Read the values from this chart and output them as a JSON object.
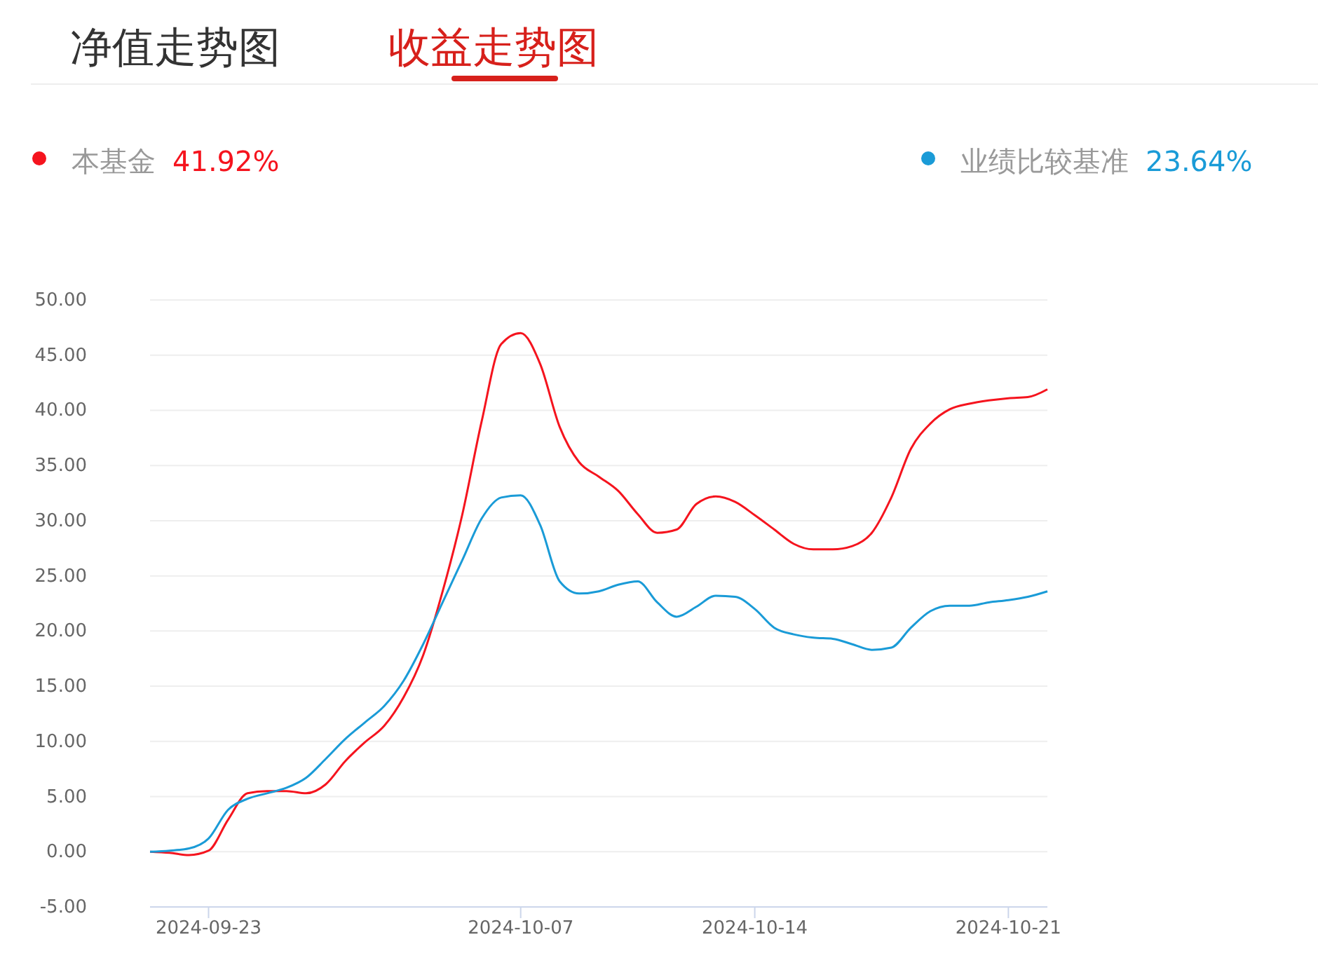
{
  "chart_data": {
    "type": "line",
    "title": "收益走势图",
    "annotations": [
      "净值走势图",
      "41.92%",
      "23.64%"
    ],
    "categories": [
      null,
      null,
      null,
      "2024-09-23",
      null,
      null,
      null,
      null,
      null,
      null,
      null,
      null,
      null,
      null,
      null,
      null,
      null,
      null,
      null,
      "2024-10-07",
      null,
      null,
      null,
      null,
      null,
      null,
      null,
      null,
      null,
      null,
      null,
      "2024-10-14",
      null,
      null,
      null,
      null,
      null,
      null,
      null,
      null,
      null,
      null,
      null,
      null,
      "2024-10-21",
      null,
      null
    ],
    "series": [
      {
        "name": "本基金",
        "color": "#f5141e",
        "values": [
          0,
          -0.1,
          -0.3,
          0.1,
          2.9,
          5.3,
          5.5,
          5.5,
          5.3,
          6.1,
          8.2,
          9.9,
          11.4,
          14,
          17.8,
          23.6,
          30.5,
          39,
          46,
          47,
          44.2,
          38.5,
          35.3,
          34,
          32.7,
          30.6,
          28.9,
          29.2,
          31.5,
          32.2,
          31.7,
          30.5,
          29.2,
          27.9,
          27.4,
          27.4,
          27.7,
          28.9,
          32.1,
          36.5,
          38.8,
          40.1,
          40.6,
          40.9,
          41.1,
          41.2,
          41.9
        ]
      },
      {
        "name": "业绩比较基准",
        "color": "#1a9bd7",
        "values": [
          0,
          0.1,
          0.3,
          1.2,
          3.8,
          4.8,
          5.3,
          5.8,
          6.7,
          8.4,
          10.2,
          11.7,
          13.2,
          15.5,
          18.8,
          22.6,
          26.4,
          30.2,
          32.1,
          32.3,
          29.6,
          24.5,
          23.4,
          23.6,
          24.2,
          24.5,
          22.6,
          21.3,
          22.2,
          23.2,
          23.1,
          22,
          20.3,
          19.7,
          19.4,
          19.3,
          18.8,
          18.3,
          18.5,
          20.3,
          21.8,
          22.3,
          22.3,
          22.6,
          22.8,
          23.1,
          23.6
        ]
      }
    ],
    "ylim": [
      -5,
      50
    ],
    "yticks": [
      {
        "value": -5,
        "label": "-5.00"
      },
      {
        "value": 0,
        "label": "0.00"
      },
      {
        "value": 5,
        "label": "5.00"
      },
      {
        "value": 10,
        "label": "10.00"
      },
      {
        "value": 15,
        "label": "15.00"
      },
      {
        "value": 20,
        "label": "20.00"
      },
      {
        "value": 25,
        "label": "25.00"
      },
      {
        "value": 30,
        "label": "30.00"
      },
      {
        "value": 35,
        "label": "35.00"
      },
      {
        "value": 40,
        "label": "40.00"
      },
      {
        "value": 45,
        "label": "45.00"
      },
      {
        "value": 50,
        "label": "50.00"
      }
    ],
    "grid": "y",
    "legend": "top",
    "marker": "none",
    "line_style": "solid"
  }
}
